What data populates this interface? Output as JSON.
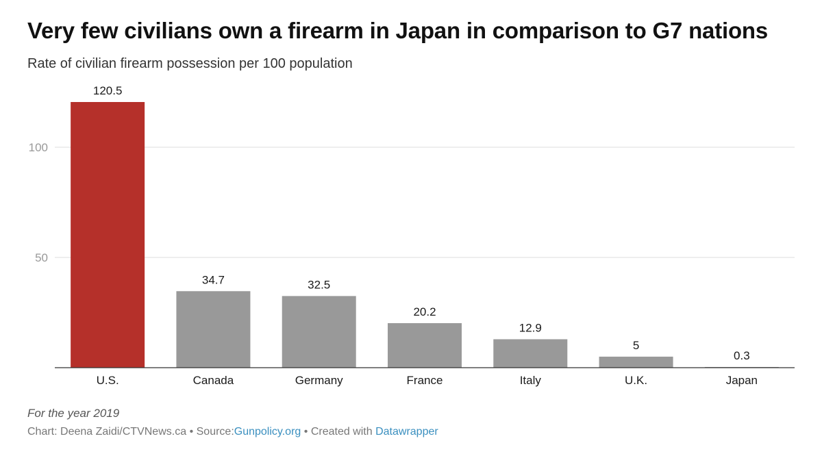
{
  "title": "Very few civilians own a firearm in Japan in comparison to G7 nations",
  "subtitle": "Rate of civilian firearm possession per 100 population",
  "footnote": "For the year 2019",
  "credits": {
    "chart_prefix": "Chart:",
    "author": "Deena Zaidi/CTVNews.ca",
    "sep1": "•",
    "source_prefix": "Source:",
    "source": "Gunpolicy.org",
    "sep2": "•",
    "created_prefix": "Created with",
    "tool": "Datawrapper"
  },
  "colors": {
    "highlight": "#b5302a",
    "default": "#999999",
    "grid": "#dddddd",
    "axis": "#333333",
    "tick_text": "#999999"
  },
  "chart_data": {
    "type": "bar",
    "title": "Very few civilians own a firearm in Japan in comparison to G7 nations",
    "subtitle": "Rate of civilian firearm possession per 100 population",
    "xlabel": "",
    "ylabel": "",
    "categories": [
      "U.S.",
      "Canada",
      "Germany",
      "France",
      "Italy",
      "U.K.",
      "Japan"
    ],
    "values": [
      120.5,
      34.7,
      32.5,
      20.2,
      12.9,
      5,
      0.3
    ],
    "value_labels": [
      "120.5",
      "34.7",
      "32.5",
      "20.2",
      "12.9",
      "5",
      "0.3"
    ],
    "highlighted": [
      "U.S."
    ],
    "y_ticks": [
      50,
      100
    ],
    "ylim": [
      0,
      120.5
    ],
    "grid": true
  }
}
